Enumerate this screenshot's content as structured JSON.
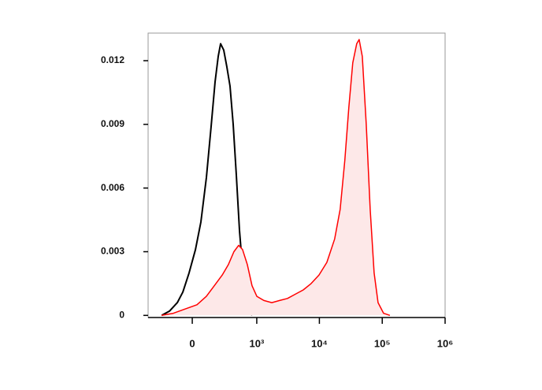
{
  "chart_data": {
    "type": "histogram-overlay",
    "xscale": "asinh",
    "xlim": [
      -460,
      1000000
    ],
    "ylim": [
      -0.0001,
      0.0133
    ],
    "xticks": [
      0,
      {
        "value": 1000,
        "label": "10³"
      },
      {
        "value": 10000,
        "label": "10⁴"
      },
      {
        "value": 100000,
        "label": "10⁵"
      },
      {
        "value": 1000000,
        "label": "10⁶"
      }
    ],
    "yticks": [
      0,
      0.003,
      0.006,
      0.009,
      0.012
    ],
    "series": [
      {
        "color": "#000000",
        "x": [
          -261,
          -178,
          -109,
          -67,
          -22,
          22,
          61,
          103,
          142,
          178,
          209,
          234,
          271,
          311,
          355,
          404,
          458,
          519,
          585,
          661,
          745,
          838
        ],
        "values": [
          0,
          0.0002,
          0.0006,
          0.0011,
          0.002,
          0.0031,
          0.0044,
          0.0065,
          0.0089,
          0.011,
          0.0122,
          0.0128,
          0.0125,
          0.0117,
          0.0108,
          0.009,
          0.0066,
          0.004,
          0.0022,
          0.001,
          0.0003,
          0
        ]
      },
      {
        "color": "#ff0000",
        "fill": "#fde8e8",
        "x": [
          -261,
          -142,
          -50,
          33,
          103,
          171,
          253,
          333,
          416,
          502,
          585,
          701,
          838,
          1001,
          1302,
          1742,
          2326,
          3105,
          4142,
          5529,
          7372,
          9842,
          13130,
          17500,
          21410,
          25420,
          29390,
          33990,
          39290,
          42880,
          48170,
          55650,
          64300,
          74250,
          85790,
          104960,
          132120
        ],
        "values": [
          0,
          0.0001,
          0.0003,
          0.0005,
          0.0009,
          0.0014,
          0.0019,
          0.0024,
          0.003,
          0.0033,
          0.0031,
          0.0024,
          0.0014,
          0.0009,
          0.0007,
          0.0006,
          0.0007,
          0.0008,
          0.001,
          0.0012,
          0.0015,
          0.0019,
          0.0025,
          0.0036,
          0.005,
          0.0073,
          0.0098,
          0.0119,
          0.0128,
          0.013,
          0.0122,
          0.009,
          0.005,
          0.002,
          0.0006,
          0.0001,
          0
        ]
      }
    ]
  }
}
